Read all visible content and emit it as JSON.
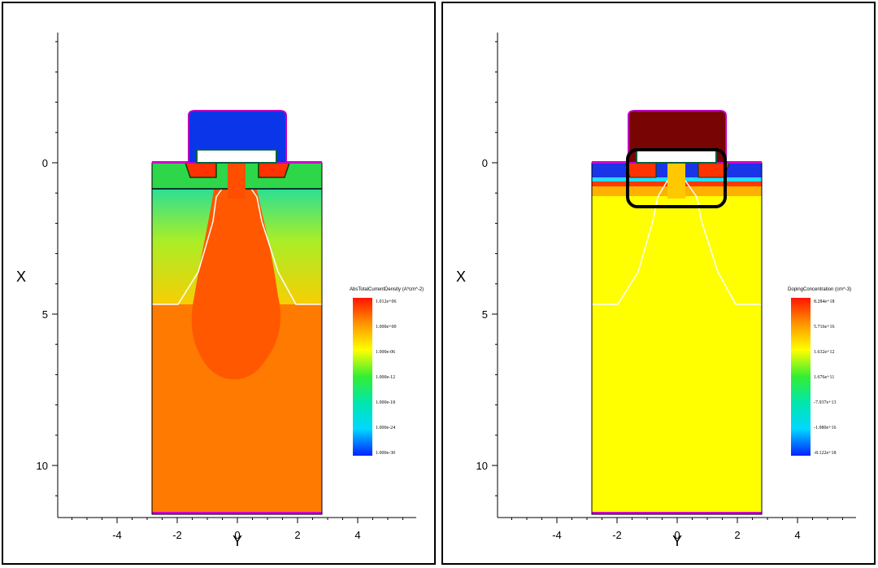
{
  "chart_data": [
    {
      "type": "heatmap",
      "title": "",
      "xlabel": "Y",
      "ylabel": "X",
      "xlim": [
        -5.6,
        5.9
      ],
      "ylim": [
        11.6,
        -4.3
      ],
      "x_ticks": [
        "-4",
        "-2",
        "0",
        "2",
        "4"
      ],
      "x_tick_values": [
        -4,
        -2,
        0,
        2,
        4
      ],
      "y_ticks": [
        "0",
        "5",
        "10"
      ],
      "y_tick_values": [
        0,
        5,
        10
      ],
      "legend": {
        "title": "AbsTotalCurrentDensity (A*cm^-2)",
        "placement": "right",
        "labels": [
          "1.012e+06",
          "1.000e+00",
          "1.000e-06",
          "1.000e-12",
          "1.000e-18",
          "1.000e-24",
          "1.000e-30"
        ]
      },
      "colors": {
        "gate": "#0a35e8",
        "substrate": "#ff7a00",
        "core": "#ff5800"
      }
    },
    {
      "type": "heatmap",
      "title": "",
      "xlabel": "Y",
      "ylabel": "X",
      "xlim": [
        -5.6,
        5.9
      ],
      "ylim": [
        11.6,
        -4.3
      ],
      "x_ticks": [
        "-4",
        "-2",
        "0",
        "2",
        "4"
      ],
      "x_tick_values": [
        -4,
        -2,
        0,
        2,
        4
      ],
      "y_ticks": [
        "0",
        "5",
        "10"
      ],
      "y_tick_values": [
        0,
        5,
        10
      ],
      "legend": {
        "title": "DopingConcentration (cm^-3)",
        "placement": "right",
        "labels": [
          "8.284e+18",
          "5.716e+16",
          "1.632e+12",
          "1.676e+11",
          "-7.937e+13",
          "-1.980e+16",
          "-8.122e+18"
        ]
      },
      "colors": {
        "gate": "#780404",
        "substrate": "#ffff00",
        "highlight": "#000000"
      }
    }
  ]
}
